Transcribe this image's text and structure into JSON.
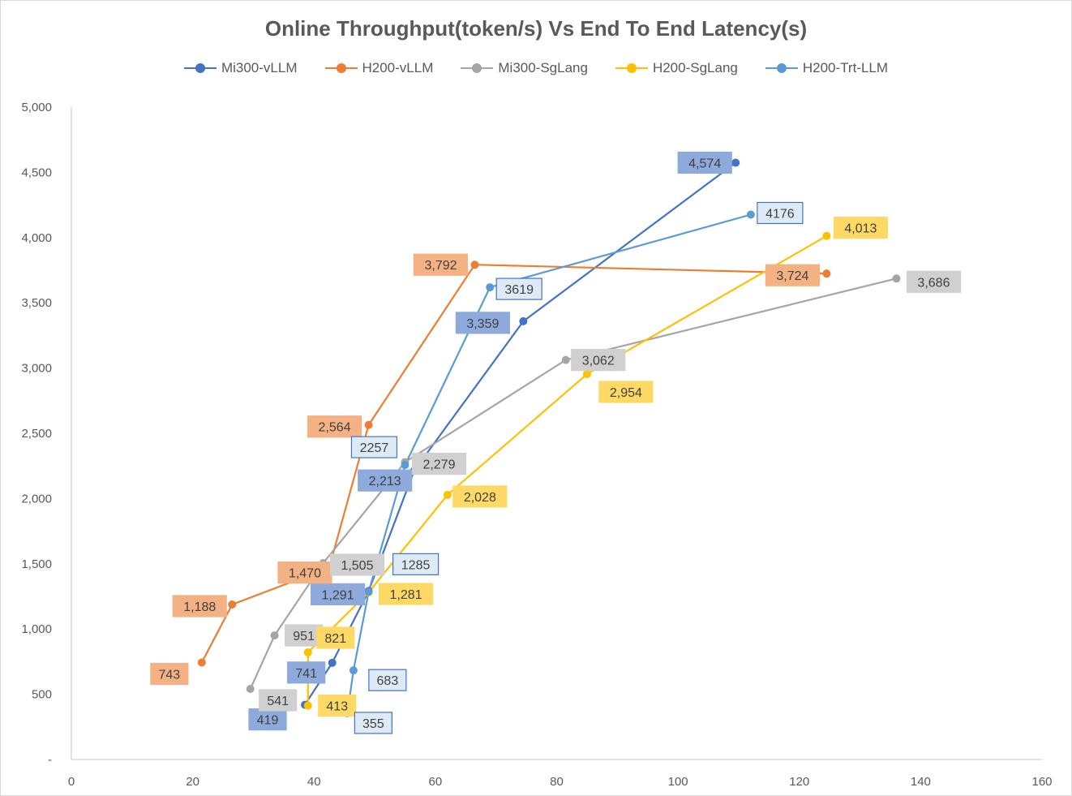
{
  "chart_data": {
    "type": "line",
    "title": "Online Throughput(token/s) Vs End To End Latency(s)",
    "xlabel": "",
    "ylabel": "",
    "xlim": [
      0,
      160
    ],
    "ylim": [
      0,
      5000
    ],
    "x_ticks": [
      0,
      20,
      40,
      60,
      80,
      100,
      120,
      140,
      160
    ],
    "x_tick_labels": [
      "0",
      "20",
      "40",
      "60",
      "80",
      "100",
      "120",
      "140",
      "160"
    ],
    "y_ticks": [
      0,
      500,
      1000,
      1500,
      2000,
      2500,
      3000,
      3500,
      4000,
      4500,
      5000
    ],
    "y_tick_labels": [
      "-",
      "500",
      "1,000",
      "1,500",
      "2,000",
      "2,500",
      "3,000",
      "3,500",
      "4,000",
      "4,500",
      "5,000"
    ],
    "grid": false,
    "legend_position": "top",
    "series": [
      {
        "name": "Mi300-vLLM",
        "color": "#4472C4",
        "label_bg": "#8EA9DB",
        "label_border": "#8EA9DB",
        "points": [
          {
            "x": 38.5,
            "y": 419,
            "label": "419"
          },
          {
            "x": 43,
            "y": 741,
            "label": "741"
          },
          {
            "x": 49,
            "y": 1291,
            "label": "1,291"
          },
          {
            "x": 56.5,
            "y": 2213,
            "label": "2,213"
          },
          {
            "x": 74.5,
            "y": 3359,
            "label": "3,359"
          },
          {
            "x": 109.5,
            "y": 4574,
            "label": "4,574"
          }
        ]
      },
      {
        "name": "H200-vLLM",
        "color": "#ED7D31",
        "label_bg": "#F4B183",
        "label_border": "#F4B183",
        "points": [
          {
            "x": 21.5,
            "y": 743,
            "label": "743"
          },
          {
            "x": 26.5,
            "y": 1188,
            "label": "1,188"
          },
          {
            "x": 42.5,
            "y": 1470,
            "label": "1,470"
          },
          {
            "x": 49,
            "y": 2564,
            "label": "2,564"
          },
          {
            "x": 66.5,
            "y": 3792,
            "label": "3,792"
          },
          {
            "x": 124.5,
            "y": 3724,
            "label": "3,724"
          }
        ]
      },
      {
        "name": "Mi300-SgLang",
        "color": "#A5A5A5",
        "label_bg": "#D0D0D0",
        "label_border": "#D0D0D0",
        "points": [
          {
            "x": 29.5,
            "y": 541,
            "label": "541"
          },
          {
            "x": 33.5,
            "y": 951,
            "label": "951"
          },
          {
            "x": 41.5,
            "y": 1505,
            "label": "1,505"
          },
          {
            "x": 55,
            "y": 2279,
            "label": "2,279"
          },
          {
            "x": 81.5,
            "y": 3062,
            "label": "3,062"
          },
          {
            "x": 136,
            "y": 3686,
            "label": "3,686"
          }
        ]
      },
      {
        "name": "H200-SgLang",
        "color": "#FFC000",
        "label_bg": "#FFD966",
        "label_border": "#FFD966",
        "points": [
          {
            "x": 39,
            "y": 413,
            "label": "413"
          },
          {
            "x": 39,
            "y": 821,
            "label": "821"
          },
          {
            "x": 49,
            "y": 1281,
            "label": "1,281"
          },
          {
            "x": 62,
            "y": 2028,
            "label": "2,028"
          },
          {
            "x": 85,
            "y": 2954,
            "label": "2,954"
          },
          {
            "x": 124.5,
            "y": 4013,
            "label": "4,013"
          }
        ]
      },
      {
        "name": "H200-Trt-LLM",
        "color": "#5B9BD5",
        "label_bg": "#DEEBF7",
        "label_border": "#4472C4",
        "points": [
          {
            "x": 45.5,
            "y": 355,
            "label": "355"
          },
          {
            "x": 46.5,
            "y": 683,
            "label": "683"
          },
          {
            "x": 49,
            "y": 1285,
            "label": "1285"
          },
          {
            "x": 55,
            "y": 2257,
            "label": "2257"
          },
          {
            "x": 69,
            "y": 3619,
            "label": "3619"
          },
          {
            "x": 112,
            "y": 4176,
            "label": "4176"
          }
        ]
      }
    ]
  }
}
